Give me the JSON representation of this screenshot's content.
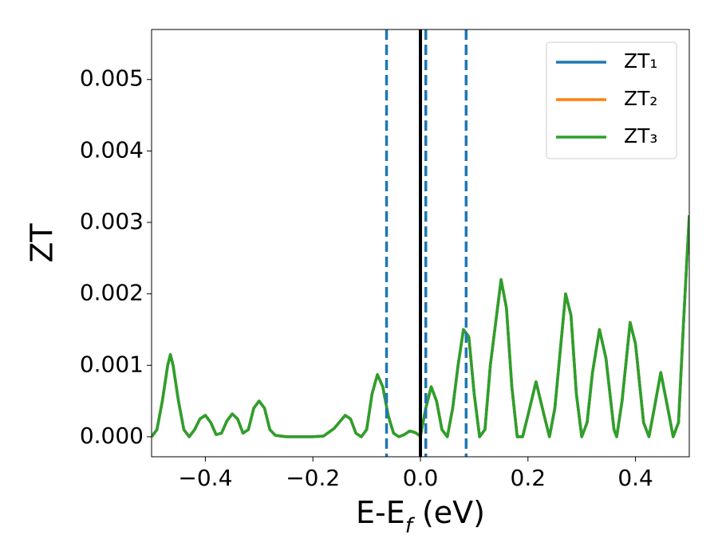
{
  "chart_data": {
    "type": "line",
    "xlabel_parts": [
      "E-E",
      "f",
      " (eV)"
    ],
    "ylabel": "ZT",
    "x": [
      -0.5,
      -0.49,
      -0.48,
      -0.47,
      -0.465,
      -0.46,
      -0.45,
      -0.44,
      -0.43,
      -0.42,
      -0.41,
      -0.4,
      -0.39,
      -0.38,
      -0.37,
      -0.36,
      -0.35,
      -0.34,
      -0.33,
      -0.32,
      -0.31,
      -0.3,
      -0.29,
      -0.28,
      -0.27,
      -0.25,
      -0.2,
      -0.18,
      -0.16,
      -0.14,
      -0.13,
      -0.12,
      -0.11,
      -0.1,
      -0.09,
      -0.08,
      -0.07,
      -0.06,
      -0.05,
      -0.04,
      -0.03,
      -0.02,
      -0.01,
      0.0,
      0.01,
      0.02,
      0.03,
      0.04,
      0.05,
      0.06,
      0.07,
      0.08,
      0.09,
      0.1,
      0.11,
      0.12,
      0.13,
      0.15,
      0.16,
      0.17,
      0.18,
      0.19,
      0.2,
      0.215,
      0.23,
      0.24,
      0.25,
      0.27,
      0.28,
      0.29,
      0.3,
      0.31,
      0.32,
      0.333,
      0.345,
      0.36,
      0.365,
      0.375,
      0.39,
      0.4,
      0.415,
      0.425,
      0.435,
      0.447,
      0.46,
      0.47,
      0.48,
      0.49,
      0.5
    ],
    "series": [
      {
        "name": "ZT₁",
        "color": "#1f77b4",
        "values": [
          0.0,
          0.0001,
          0.0005,
          0.001,
          0.00115,
          0.001,
          0.0005,
          0.0001,
          0.0,
          0.0001,
          0.00025,
          0.0003,
          0.0002,
          3e-05,
          5e-05,
          0.00022,
          0.00032,
          0.00025,
          5e-05,
          0.0001,
          0.0004,
          0.0005,
          0.0004,
          0.0001,
          2e-05,
          0.0,
          0.0,
          1e-05,
          0.00012,
          0.0003,
          0.00025,
          5e-05,
          0.0,
          0.0001,
          0.0006,
          0.00087,
          0.0007,
          0.0003,
          5e-05,
          0.0,
          3e-05,
          8e-05,
          6e-05,
          1e-05,
          0.0004,
          0.0007,
          0.0005,
          0.0001,
          0.0,
          0.0004,
          0.001,
          0.0015,
          0.0014,
          0.0006,
          0.0,
          0.0001,
          0.001,
          0.0022,
          0.0018,
          0.0007,
          0.0,
          0.0,
          0.0003,
          0.00077,
          0.0003,
          0.0,
          0.0004,
          0.002,
          0.0017,
          0.0006,
          0.0,
          0.0002,
          0.0009,
          0.0015,
          0.0011,
          0.0001,
          0.0,
          0.0005,
          0.0016,
          0.0013,
          0.0002,
          0.0,
          0.0004,
          0.0009,
          0.0004,
          0.0,
          0.0002,
          0.0017,
          0.0031
        ]
      },
      {
        "name": "ZT₂",
        "color": "#ff7f0e",
        "values": [
          0.0,
          0.0001,
          0.0005,
          0.001,
          0.00115,
          0.001,
          0.0005,
          0.0001,
          0.0,
          0.0001,
          0.00025,
          0.0003,
          0.0002,
          3e-05,
          5e-05,
          0.00022,
          0.00032,
          0.00025,
          5e-05,
          0.0001,
          0.0004,
          0.0005,
          0.0004,
          0.0001,
          2e-05,
          0.0,
          0.0,
          1e-05,
          0.00012,
          0.0003,
          0.00025,
          5e-05,
          0.0,
          0.0001,
          0.0006,
          0.00087,
          0.0007,
          0.0003,
          5e-05,
          0.0,
          3e-05,
          8e-05,
          6e-05,
          1e-05,
          0.0004,
          0.0007,
          0.0005,
          0.0001,
          0.0,
          0.0004,
          0.001,
          0.0015,
          0.0014,
          0.0006,
          0.0,
          0.0001,
          0.001,
          0.0022,
          0.0018,
          0.0007,
          0.0,
          0.0,
          0.0003,
          0.00077,
          0.0003,
          0.0,
          0.0004,
          0.002,
          0.0017,
          0.0006,
          0.0,
          0.0002,
          0.0009,
          0.0015,
          0.0011,
          0.0001,
          0.0,
          0.0005,
          0.0016,
          0.0013,
          0.0002,
          0.0,
          0.0004,
          0.0009,
          0.0004,
          0.0,
          0.0002,
          0.0017,
          0.0031
        ]
      },
      {
        "name": "ZT₃",
        "color": "#2ca02c",
        "values": [
          0.0,
          0.0001,
          0.0005,
          0.001,
          0.00115,
          0.001,
          0.0005,
          0.0001,
          0.0,
          0.0001,
          0.00025,
          0.0003,
          0.0002,
          3e-05,
          5e-05,
          0.00022,
          0.00032,
          0.00025,
          5e-05,
          0.0001,
          0.0004,
          0.0005,
          0.0004,
          0.0001,
          2e-05,
          0.0,
          0.0,
          1e-05,
          0.00012,
          0.0003,
          0.00025,
          5e-05,
          0.0,
          0.0001,
          0.0006,
          0.00087,
          0.0007,
          0.0003,
          5e-05,
          0.0,
          3e-05,
          8e-05,
          6e-05,
          1e-05,
          0.0004,
          0.0007,
          0.0005,
          0.0001,
          0.0,
          0.0004,
          0.001,
          0.0015,
          0.0014,
          0.0006,
          0.0,
          0.0001,
          0.001,
          0.0022,
          0.0018,
          0.0007,
          0.0,
          0.0,
          0.0003,
          0.00077,
          0.0003,
          0.0,
          0.0004,
          0.002,
          0.0017,
          0.0006,
          0.0,
          0.0002,
          0.0009,
          0.0015,
          0.0011,
          0.0001,
          0.0,
          0.0005,
          0.0016,
          0.0013,
          0.0002,
          0.0,
          0.0004,
          0.0009,
          0.0004,
          0.0,
          0.0002,
          0.0017,
          0.0031
        ]
      }
    ],
    "vlines": [
      {
        "x": 0.0,
        "color": "#000000",
        "dashed": false
      },
      {
        "x": -0.063,
        "color": "#1f77b4",
        "dashed": true
      },
      {
        "x": 0.01,
        "color": "#1f77b4",
        "dashed": true
      },
      {
        "x": 0.085,
        "color": "#1f77b4",
        "dashed": true
      }
    ],
    "xlim": [
      -0.5,
      0.5
    ],
    "ylim": [
      -0.00028,
      0.0057
    ],
    "xticks": [
      {
        "value": -0.4,
        "label": "−0.4"
      },
      {
        "value": -0.2,
        "label": "−0.2"
      },
      {
        "value": 0.0,
        "label": "0.0"
      },
      0.2,
      0.4
    ],
    "yticks": [
      {
        "value": 0.0,
        "label": "0.000"
      },
      0.001,
      0.002,
      0.003,
      0.004,
      0.005
    ],
    "legend": "upper right"
  }
}
